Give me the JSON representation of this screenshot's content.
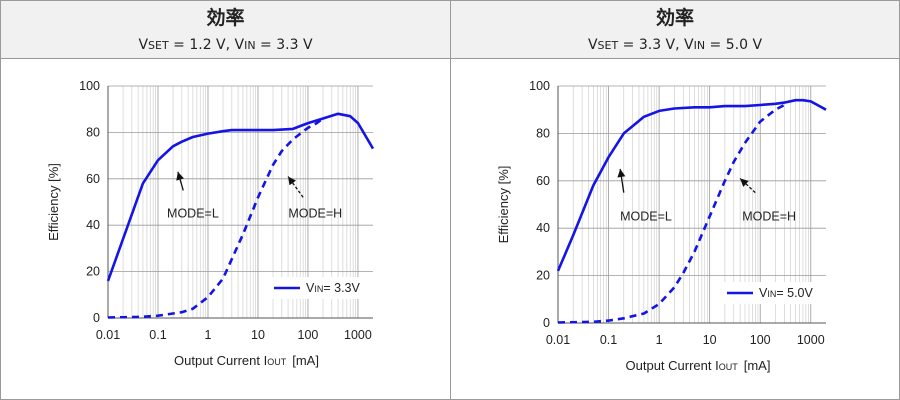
{
  "panels": [
    {
      "title": "効率",
      "subtitle": {
        "vset_label": "V",
        "vset_sub": "SET",
        "vset_value": "= 1.2 V, ",
        "vin_label": "V",
        "vin_sub": "IN",
        "vin_value": "= 3.3 V"
      }
    },
    {
      "title": "効率",
      "subtitle": {
        "vset_label": "V",
        "vset_sub": "SET",
        "vset_value": "= 3.3 V, ",
        "vin_label": "V",
        "vin_sub": "IN",
        "vin_value": "= 5.0 V"
      }
    }
  ],
  "colors": {
    "series": "#1414e6",
    "grid": "#c8c8c8",
    "axis": "#555555",
    "header_bg": "#f1f1f1"
  },
  "chart_data": [
    {
      "type": "line",
      "xscale": "log",
      "xlim": [
        0.01,
        2000
      ],
      "ylim": [
        0,
        100
      ],
      "xticks": [
        "0.01",
        "0.1",
        "1",
        "10",
        "100",
        "1000"
      ],
      "yticks": [
        "0",
        "20",
        "40",
        "60",
        "80",
        "100"
      ],
      "xlabel": {
        "main": "Output Current I",
        "sub": "OUT",
        "unit": "[mA]"
      },
      "ylabel": "Efficiency [%]",
      "legend": {
        "label": "V",
        "sub": "IN",
        "value": "= 3.3V",
        "position": "bottom-right"
      },
      "annotations": [
        {
          "text": "MODE=L",
          "x": 0.5,
          "y": 45,
          "arrow_from": [
            0.32,
            55
          ],
          "arrow_to": [
            0.25,
            63
          ],
          "style": "solid"
        },
        {
          "text": "MODE=H",
          "x": 140,
          "y": 45,
          "arrow_from": [
            80,
            52
          ],
          "arrow_to": [
            40,
            61
          ],
          "style": "dashed"
        }
      ],
      "series": [
        {
          "label": "MODE=L",
          "style": "solid",
          "x": [
            0.01,
            0.02,
            0.05,
            0.1,
            0.2,
            0.3,
            0.5,
            1,
            2,
            3,
            5,
            10,
            20,
            50,
            100,
            200,
            400,
            700,
            1000,
            2000
          ],
          "y": [
            16,
            34,
            58,
            68,
            74,
            76,
            78,
            79.5,
            80.5,
            81,
            81,
            81,
            81,
            81.5,
            84,
            86,
            88,
            87,
            84,
            73
          ]
        },
        {
          "label": "MODE=H",
          "style": "dashed",
          "x": [
            0.01,
            0.05,
            0.1,
            0.3,
            0.5,
            1,
            2,
            5,
            10,
            20,
            30,
            50,
            100,
            150,
            200
          ],
          "y": [
            0.2,
            0.5,
            1,
            2.5,
            4,
            9,
            17,
            36,
            52,
            66,
            72,
            77,
            82,
            84,
            86
          ]
        }
      ]
    },
    {
      "type": "line",
      "xscale": "log",
      "xlim": [
        0.01,
        2000
      ],
      "ylim": [
        0,
        100
      ],
      "xticks": [
        "0.01",
        "0.1",
        "1",
        "10",
        "100",
        "1000"
      ],
      "yticks": [
        "0",
        "20",
        "40",
        "60",
        "80",
        "100"
      ],
      "xlabel": {
        "main": "Output Current I",
        "sub": "OUT",
        "unit": "[mA]"
      },
      "ylabel": "Efficiency [%]",
      "legend": {
        "label": "V",
        "sub": "IN",
        "value": "= 5.0V",
        "position": "bottom-right"
      },
      "annotations": [
        {
          "text": "MODE=L",
          "x": 0.55,
          "y": 45,
          "arrow_from": [
            0.2,
            55
          ],
          "arrow_to": [
            0.17,
            65
          ],
          "style": "solid"
        },
        {
          "text": "MODE=H",
          "x": 150,
          "y": 45,
          "arrow_from": [
            80,
            55
          ],
          "arrow_to": [
            40,
            61
          ],
          "style": "dashed"
        }
      ],
      "series": [
        {
          "label": "MODE=L",
          "style": "solid",
          "x": [
            0.01,
            0.02,
            0.05,
            0.1,
            0.2,
            0.5,
            1,
            2,
            5,
            10,
            20,
            50,
            100,
            200,
            300,
            500,
            700,
            1000,
            2000
          ],
          "y": [
            22,
            37,
            58,
            70,
            80,
            87,
            89.5,
            90.5,
            91,
            91,
            91.5,
            91.5,
            92,
            92.5,
            93,
            94,
            94,
            93.5,
            90
          ]
        },
        {
          "label": "MODE=H",
          "style": "dashed",
          "x": [
            0.01,
            0.05,
            0.1,
            0.2,
            0.5,
            1,
            2,
            3,
            5,
            10,
            20,
            30,
            50,
            100,
            200,
            300
          ],
          "y": [
            0.2,
            0.5,
            1,
            2,
            4,
            8,
            15,
            21,
            30,
            45,
            60,
            68,
            76,
            85,
            90,
            92
          ]
        }
      ]
    }
  ]
}
